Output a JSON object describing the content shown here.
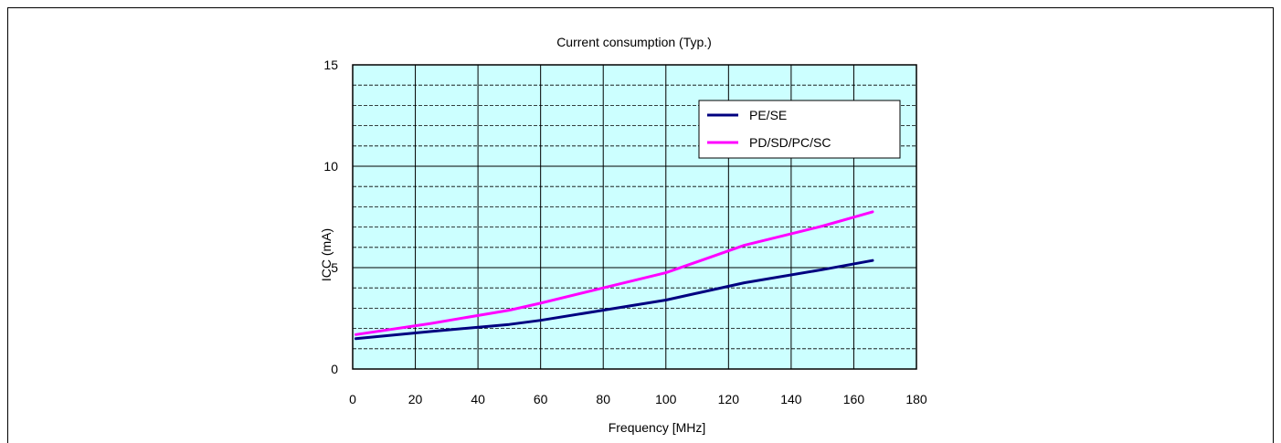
{
  "chart_data": {
    "type": "line",
    "title": "Current consumption (Typ.)",
    "xlabel": "Frequency [MHz]",
    "ylabel": "ICC (mA)",
    "xlim": [
      0,
      180
    ],
    "ylim": [
      0,
      15
    ],
    "x_ticks": [
      0,
      20,
      40,
      60,
      80,
      100,
      120,
      140,
      160,
      180
    ],
    "y_ticks": [
      0,
      5,
      10,
      15
    ],
    "y_minor_step": 1,
    "grid": true,
    "legend_position": "top-right",
    "plot_background": "#ccffff",
    "series": [
      {
        "name": "PE/SE",
        "color": "#000080",
        "x": [
          1,
          25,
          50,
          60,
          80,
          100,
          125,
          150,
          166
        ],
        "y": [
          1.5,
          1.85,
          2.2,
          2.4,
          2.9,
          3.4,
          4.25,
          4.9,
          5.35
        ]
      },
      {
        "name": "PD/SD/PC/SC",
        "color": "#ff00ff",
        "x": [
          1,
          25,
          50,
          60,
          80,
          100,
          125,
          150,
          166
        ],
        "y": [
          1.7,
          2.25,
          2.9,
          3.25,
          4.0,
          4.75,
          6.1,
          7.05,
          7.75
        ]
      }
    ]
  }
}
